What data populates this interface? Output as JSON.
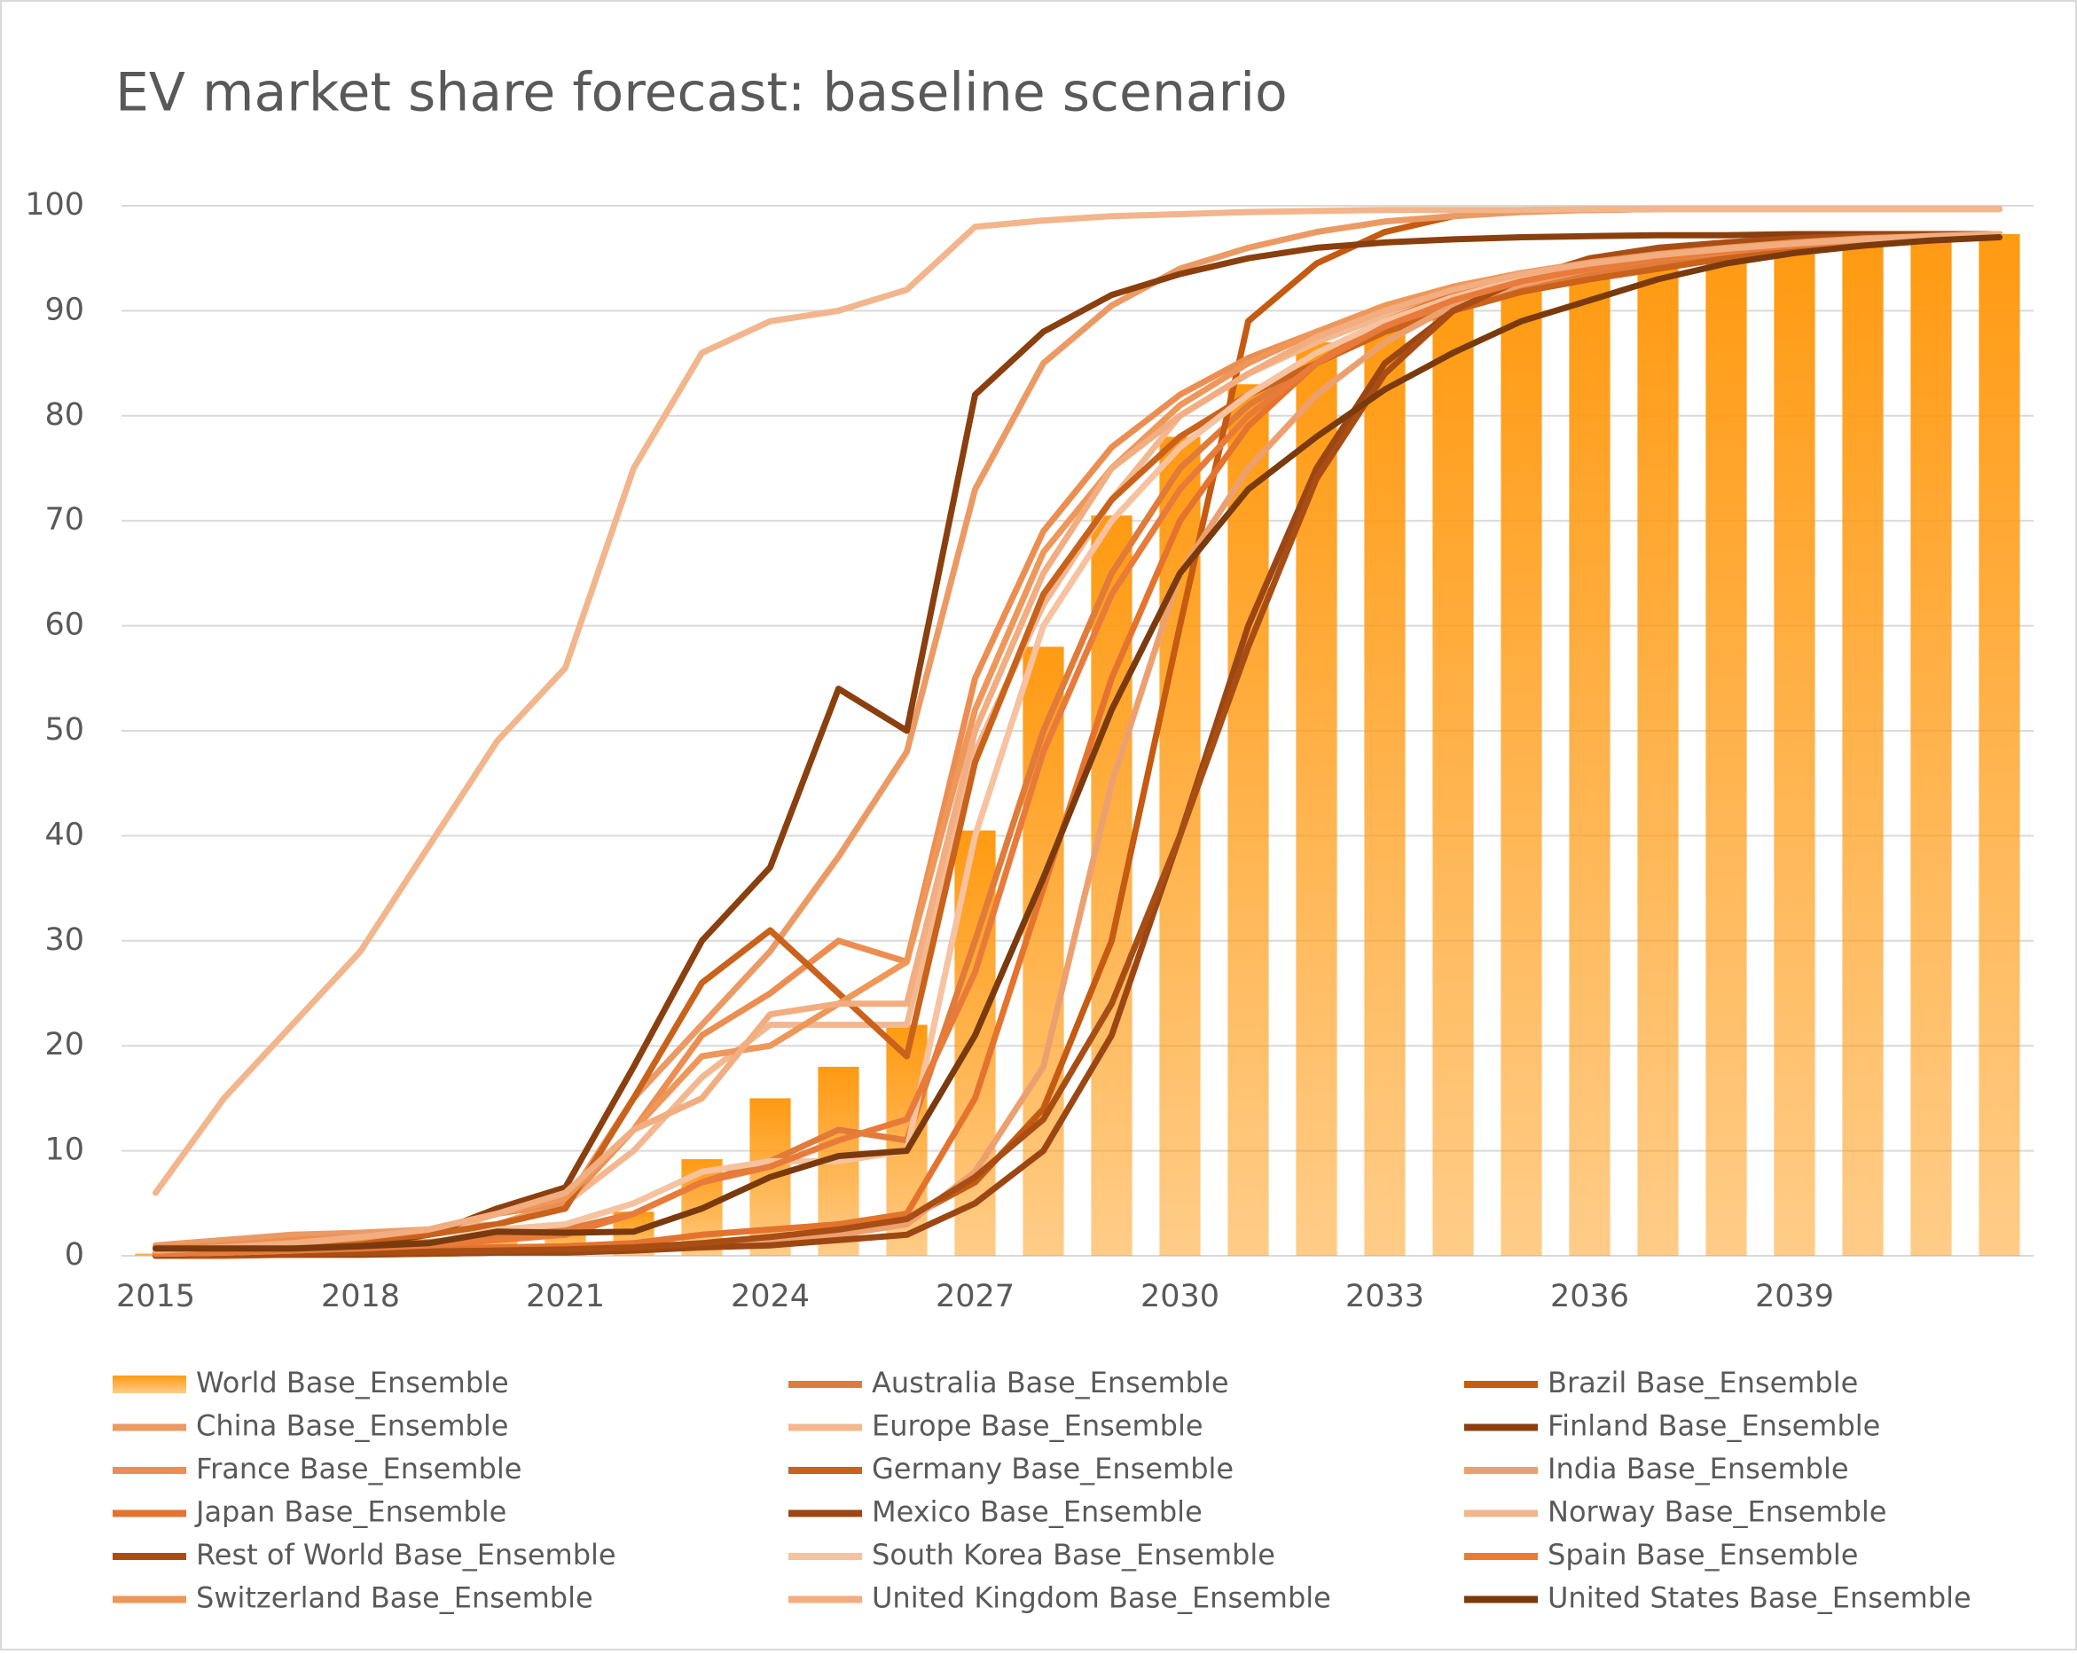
{
  "chart_data": {
    "type": "combo",
    "title": "EV market share forecast: baseline scenario",
    "categories": [
      "2015",
      null,
      null,
      "2018",
      null,
      null,
      "2021",
      null,
      null,
      "2024",
      null,
      null,
      "2027",
      null,
      null,
      "2030",
      null,
      null,
      "2033",
      null,
      null,
      "2036",
      null,
      null,
      "2039",
      null,
      null,
      null
    ],
    "ylim": [
      0,
      100
    ],
    "yticks": [
      0,
      10,
      20,
      30,
      40,
      50,
      60,
      70,
      80,
      90,
      100
    ],
    "grid": true,
    "series": [
      {
        "name": "World Base_Ensemble",
        "type": "bar",
        "color": "#ff9a12",
        "values": [
          0.2,
          0.3,
          0.5,
          0.8,
          1.2,
          2.5,
          3,
          4.2,
          9.2,
          15,
          18,
          22,
          40.5,
          58,
          70.5,
          78,
          83,
          87,
          89.5,
          91.5,
          93,
          94,
          95,
          95.5,
          96,
          96.5,
          97,
          97.3
        ]
      },
      {
        "name": "Australia Base_Ensemble",
        "type": "line",
        "color": "#e07b39",
        "values": [
          0.3,
          0.5,
          0.8,
          1,
          1.3,
          2,
          2.5,
          4,
          7,
          9,
          12,
          11,
          30,
          50,
          65,
          75,
          81,
          85,
          88,
          90.5,
          92,
          93.5,
          94.5,
          95.5,
          96,
          96.5,
          97,
          97.3
        ]
      },
      {
        "name": "Brazil Base_Ensemble",
        "type": "line",
        "color": "#c55a11",
        "values": [
          0,
          0,
          0.1,
          0.1,
          0.2,
          0.3,
          0.4,
          0.6,
          1,
          1.5,
          2.5,
          3.5,
          7,
          14,
          30,
          60,
          89,
          94.5,
          97.5,
          99,
          99.5,
          99.6,
          99.7,
          99.7,
          99.7,
          99.7,
          99.7,
          99.7
        ]
      },
      {
        "name": "China Base_Ensemble",
        "type": "line",
        "color": "#eb9a64",
        "values": [
          1,
          1.5,
          2,
          2.2,
          2.5,
          3,
          5,
          15,
          22,
          29,
          38,
          48,
          73,
          85,
          90.5,
          94,
          96,
          97.5,
          98.5,
          99,
          99.4,
          99.6,
          99.7,
          99.7,
          99.7,
          99.7,
          99.7,
          99.7
        ]
      },
      {
        "name": "Europe Base_Ensemble",
        "type": "line",
        "color": "#f4b890",
        "values": [
          0.5,
          0.8,
          1,
          1.3,
          2,
          4,
          5,
          10,
          17,
          22,
          22,
          22,
          48,
          62,
          72,
          80,
          84,
          87,
          89.5,
          91.5,
          93,
          94,
          95,
          95.7,
          96.2,
          96.7,
          97,
          97.3
        ]
      },
      {
        "name": "Finland Base_Ensemble",
        "type": "line",
        "color": "#8a3f0e",
        "values": [
          0.5,
          0.6,
          0.8,
          1,
          2,
          4.5,
          6.5,
          18,
          30,
          37,
          54,
          50,
          82,
          88,
          91.5,
          93.5,
          95,
          96,
          96.5,
          96.8,
          97,
          97.1,
          97.2,
          97.2,
          97.3,
          97.3,
          97.3,
          97.3
        ]
      },
      {
        "name": "France Base_Ensemble",
        "type": "line",
        "color": "#ec8e52",
        "values": [
          0.8,
          1,
          1.5,
          1.8,
          2.5,
          4,
          5,
          12,
          21,
          25,
          30,
          28,
          55,
          69,
          77,
          82,
          85.5,
          88,
          90,
          91.8,
          93,
          94,
          95,
          95.6,
          96.2,
          96.6,
          97,
          97.3
        ]
      },
      {
        "name": "Germany Base_Ensemble",
        "type": "line",
        "color": "#c9621b",
        "values": [
          0.5,
          0.7,
          1,
          1.5,
          2,
          3,
          4.5,
          15,
          26,
          31,
          25,
          19,
          47,
          63,
          72,
          78,
          82,
          85,
          88,
          90,
          91.8,
          93,
          94,
          95,
          95.7,
          96.3,
          96.8,
          97.2
        ]
      },
      {
        "name": "India Base_Ensemble",
        "type": "line",
        "color": "#eda06f",
        "values": [
          0,
          0.1,
          0.1,
          0.2,
          0.2,
          0.3,
          0.4,
          0.6,
          0.9,
          1.2,
          2,
          3,
          8,
          18,
          45,
          65,
          75,
          82,
          87,
          90.5,
          92.5,
          94,
          95,
          95.7,
          96.3,
          96.8,
          97.1,
          97.3
        ]
      },
      {
        "name": "Japan Base_Ensemble",
        "type": "line",
        "color": "#e4732e",
        "values": [
          0.3,
          0.4,
          0.5,
          0.6,
          0.7,
          0.8,
          0.9,
          1.2,
          2,
          2.5,
          3,
          4,
          15,
          35,
          55,
          70,
          79,
          85,
          89,
          91.5,
          93,
          94.2,
          95.2,
          95.8,
          96.3,
          96.8,
          97.1,
          97.3
        ]
      },
      {
        "name": "Mexico Base_Ensemble",
        "type": "line",
        "color": "#9c4713",
        "values": [
          0,
          0.1,
          0.1,
          0.1,
          0.2,
          0.3,
          0.3,
          0.5,
          0.8,
          1,
          1.5,
          2,
          5,
          10,
          21,
          40,
          60,
          75,
          85,
          90,
          93,
          94.8,
          95.8,
          96.4,
          96.8,
          97,
          97.2,
          97.3
        ]
      },
      {
        "name": "Norway Base_Ensemble",
        "type": "line",
        "color": "#f2b58c",
        "values": [
          6,
          15,
          22,
          29,
          39,
          49,
          56,
          75,
          86,
          89,
          90,
          92,
          98,
          98.6,
          99,
          99.2,
          99.4,
          99.5,
          99.6,
          99.6,
          99.6,
          99.7,
          99.7,
          99.7,
          99.7,
          99.7,
          99.7,
          99.7
        ]
      },
      {
        "name": "Rest of World Base_Ensemble",
        "type": "line",
        "color": "#a84e15",
        "values": [
          0.1,
          0.1,
          0.2,
          0.3,
          0.4,
          0.5,
          0.6,
          0.8,
          1.2,
          1.8,
          2.5,
          3.5,
          7.5,
          13,
          24,
          40,
          58,
          74,
          84,
          90,
          93,
          95,
          96,
          96.5,
          96.9,
          97.1,
          97.2,
          97.3
        ]
      },
      {
        "name": "South Korea Base_Ensemble",
        "type": "line",
        "color": "#f6c29f",
        "values": [
          0.2,
          0.3,
          0.5,
          0.8,
          1.2,
          2.5,
          3,
          5,
          8,
          9,
          9,
          10,
          40,
          60,
          70,
          77,
          82,
          86,
          89,
          91.3,
          93,
          94.2,
          95.2,
          95.8,
          96.3,
          96.7,
          97,
          97.3
        ]
      },
      {
        "name": "Spain Base_Ensemble",
        "type": "line",
        "color": "#e97b3a",
        "values": [
          0.2,
          0.3,
          0.5,
          0.7,
          1,
          1.5,
          2,
          4,
          7,
          8.5,
          11,
          13,
          27,
          48,
          63,
          73,
          80,
          85,
          88.5,
          91,
          92.8,
          94,
          95,
          95.7,
          96.2,
          96.7,
          97,
          97.3
        ]
      },
      {
        "name": "Switzerland Base_Ensemble",
        "type": "line",
        "color": "#ee9759",
        "values": [
          0.5,
          0.8,
          1.2,
          1.7,
          2.5,
          4,
          5.5,
          12,
          19,
          20,
          24,
          28,
          52,
          67,
          75,
          81,
          85,
          88,
          90.5,
          92.3,
          93.6,
          94.6,
          95.4,
          96,
          96.5,
          96.9,
          97.1,
          97.3
        ]
      },
      {
        "name": "United Kingdom Base_Ensemble",
        "type": "line",
        "color": "#f2ad80",
        "values": [
          0.5,
          0.8,
          1.2,
          1.8,
          2.5,
          4,
          6,
          12,
          15,
          23,
          24,
          24,
          50,
          65,
          75,
          80,
          84,
          87.5,
          90,
          92,
          93.5,
          94.5,
          95.3,
          95.9,
          96.4,
          96.8,
          97.1,
          97.3
        ]
      },
      {
        "name": "United States Base_Ensemble",
        "type": "line",
        "color": "#7a3a0d",
        "values": [
          0.7,
          0.7,
          0.7,
          0.9,
          1.2,
          2.3,
          2.2,
          2.3,
          4.5,
          7.5,
          9.5,
          10,
          21,
          36,
          52,
          65,
          73,
          78,
          82.5,
          86,
          89,
          91,
          93,
          94.5,
          95.5,
          96.2,
          96.7,
          97
        ]
      }
    ]
  }
}
